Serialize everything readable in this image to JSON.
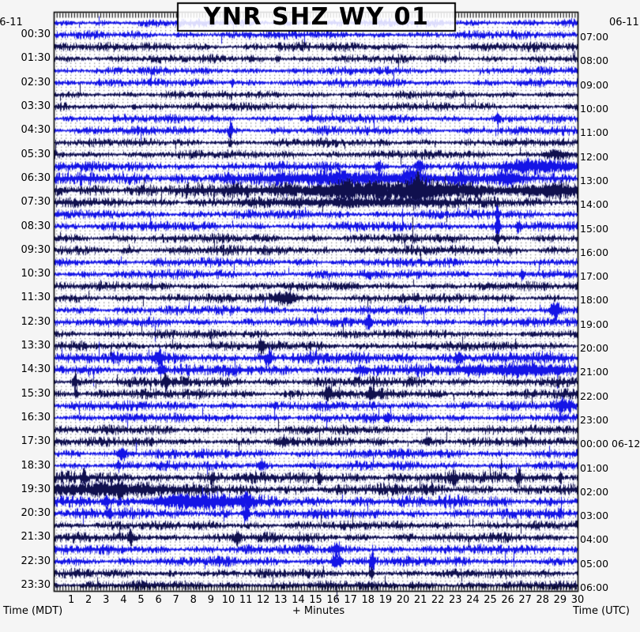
{
  "station": {
    "title": "YNR SHZ WY 01"
  },
  "dates": {
    "top_left": "06-11",
    "top_right": "06-11"
  },
  "axes": {
    "left_title": "Time (MDT)",
    "bottom_title": "+ Minutes",
    "right_title": "Time (UTC)"
  },
  "colors": {
    "background": "#f5f5f5",
    "plot_background": "#ffffff",
    "border": "#000000",
    "grid_dot": "#8f8f8f",
    "trace_blue": "#1414e6",
    "trace_dark": "#10104e",
    "trace_halo": "rgba(110,110,230,0.28)",
    "title_box_fill": "rgba(255,255,255,0.85)"
  },
  "chart_data": {
    "type": "line",
    "subtype": "helicorder-webicorder-seismogram",
    "title": "YNR SHZ WY 01",
    "start_date_label": "06-11",
    "rows": 48,
    "minutes_per_row": 30,
    "x_axis": {
      "label": "+ Minutes",
      "range": [
        0,
        30
      ],
      "tick_labels": [
        "1",
        "2",
        "3",
        "4",
        "5",
        "6",
        "7",
        "8",
        "9",
        "10",
        "11",
        "12",
        "13",
        "14",
        "15",
        "16",
        "17",
        "18",
        "19",
        "20",
        "21",
        "22",
        "23",
        "24",
        "25",
        "26",
        "27",
        "28",
        "29",
        "30"
      ]
    },
    "left_axis": {
      "label": "Time (MDT)",
      "tick_labels": [
        "00:30",
        "01:30",
        "02:30",
        "03:30",
        "04:30",
        "05:30",
        "06:30",
        "07:30",
        "08:30",
        "09:30",
        "10:30",
        "11:30",
        "12:30",
        "13:30",
        "14:30",
        "15:30",
        "16:30",
        "17:30",
        "18:30",
        "19:30",
        "20:30",
        "21:30",
        "22:30",
        "23:30"
      ]
    },
    "right_axis": {
      "label": "Time (UTC)",
      "tick_labels": [
        "07:00",
        "08:00",
        "09:00",
        "10:00",
        "11:00",
        "12:00",
        "13:00",
        "14:00",
        "15:00",
        "16:00",
        "17:00",
        "18:00",
        "19:00",
        "20:00",
        "21:00",
        "22:00",
        "23:00",
        "00:00 06-12",
        "01:00",
        "02:00",
        "03:00",
        "04:00",
        "05:00",
        "06:00"
      ]
    },
    "row_colors": [
      "b",
      "b",
      "d",
      "d",
      "b",
      "b",
      "d",
      "d",
      "b",
      "b",
      "d",
      "d",
      "b",
      "b",
      "d",
      "d",
      "b",
      "b",
      "d",
      "d",
      "b",
      "b",
      "d",
      "d",
      "b",
      "b",
      "d",
      "d",
      "b",
      "b",
      "d",
      "d",
      "b",
      "b",
      "d",
      "d",
      "b",
      "b",
      "d",
      "d",
      "b",
      "b",
      "d",
      "d",
      "b",
      "b",
      "d",
      "d"
    ],
    "row_activity": [
      0.9,
      0.9,
      0.95,
      0.9,
      0.85,
      0.9,
      0.85,
      0.9,
      0.9,
      0.95,
      0.9,
      0.95,
      1.05,
      1.5,
      1.6,
      1.15,
      1.0,
      1.05,
      1.0,
      1.1,
      1.0,
      1.0,
      0.95,
      1.0,
      1.0,
      1.0,
      0.95,
      1.05,
      1.35,
      1.3,
      1.15,
      1.1,
      1.05,
      1.0,
      1.0,
      1.0,
      1.05,
      1.0,
      1.25,
      1.3,
      1.3,
      1.15,
      1.0,
      1.05,
      1.05,
      1.05,
      1.0,
      1.0
    ],
    "events": [
      {
        "row": 2,
        "min": 12.9,
        "amp": 5,
        "sigma": 2.2
      },
      {
        "row": 3,
        "min": 12.8,
        "amp": 6,
        "sigma": 2.2
      },
      {
        "row": 5,
        "min": 10.2,
        "amp": 5,
        "sigma": 2.2
      },
      {
        "row": 7,
        "min": 4.6,
        "amp": 5,
        "sigma": 2.2
      },
      {
        "row": 8,
        "min": 25.4,
        "amp": 6,
        "sigma": 3
      },
      {
        "row": 9,
        "min": 10.1,
        "amp": 11,
        "sigma": 2.2
      },
      {
        "row": 10,
        "min": 10.1,
        "amp": 5,
        "sigma": 2.2
      },
      {
        "row": 11,
        "min": 28.6,
        "amp": 5,
        "sigma": 14
      },
      {
        "row": 12,
        "min": 18.6,
        "amp": 5,
        "sigma": 4
      },
      {
        "row": 12,
        "min": 20.9,
        "amp": 9,
        "sigma": 4
      },
      {
        "row": 12,
        "min": 28,
        "amp": 7,
        "sigma": 40
      },
      {
        "row": 13,
        "min": 16.5,
        "amp": 8,
        "sigma": 6
      },
      {
        "row": 13,
        "min": 17.5,
        "amp": 6,
        "sigma": 100
      },
      {
        "row": 13,
        "min": 20.5,
        "amp": 12,
        "sigma": 8
      },
      {
        "row": 13,
        "min": 26,
        "amp": 5,
        "sigma": 16
      },
      {
        "row": 14,
        "min": 16.8,
        "amp": 8,
        "sigma": 8
      },
      {
        "row": 14,
        "min": 19,
        "amp": 8,
        "sigma": 130
      },
      {
        "row": 14,
        "min": 20.8,
        "amp": 13,
        "sigma": 8
      },
      {
        "row": 14,
        "min": 28.5,
        "amp": 6,
        "sigma": 30
      },
      {
        "row": 15,
        "min": 18,
        "amp": 4,
        "sigma": 90
      },
      {
        "row": 16,
        "min": 25.4,
        "amp": 13,
        "sigma": 2.2
      },
      {
        "row": 17,
        "min": 25.4,
        "amp": 20,
        "sigma": 2.6
      },
      {
        "row": 17,
        "min": 26.6,
        "amp": 10,
        "sigma": 2.2
      },
      {
        "row": 18,
        "min": 25.4,
        "amp": 8,
        "sigma": 2.2
      },
      {
        "row": 21,
        "min": 26.8,
        "amp": 6,
        "sigma": 2.2
      },
      {
        "row": 23,
        "min": 13.3,
        "amp": 8,
        "sigma": 14
      },
      {
        "row": 24,
        "min": 28.7,
        "amp": 13,
        "sigma": 5
      },
      {
        "row": 25,
        "min": 18,
        "amp": 9,
        "sigma": 4
      },
      {
        "row": 27,
        "min": 11.9,
        "amp": 6,
        "sigma": 4
      },
      {
        "row": 28,
        "min": 6,
        "amp": 7,
        "sigma": 6
      },
      {
        "row": 28,
        "min": 12.3,
        "amp": 8,
        "sigma": 4
      },
      {
        "row": 28,
        "min": 23.2,
        "amp": 7,
        "sigma": 4
      },
      {
        "row": 29,
        "min": 6.2,
        "amp": 9,
        "sigma": 4
      },
      {
        "row": 29,
        "min": 17.6,
        "amp": 6,
        "sigma": 6
      },
      {
        "row": 29,
        "min": 26.9,
        "amp": 7,
        "sigma": 60
      },
      {
        "row": 30,
        "min": 1.2,
        "amp": 14,
        "sigma": 2.6
      },
      {
        "row": 30,
        "min": 6.4,
        "amp": 8,
        "sigma": 4
      },
      {
        "row": 31,
        "min": 1.3,
        "amp": 8,
        "sigma": 2.2
      },
      {
        "row": 31,
        "min": 15.7,
        "amp": 11,
        "sigma": 4
      },
      {
        "row": 31,
        "min": 18.2,
        "amp": 8,
        "sigma": 4
      },
      {
        "row": 32,
        "min": 29.3,
        "amp": 7,
        "sigma": 10
      },
      {
        "row": 33,
        "min": 19.1,
        "amp": 6,
        "sigma": 4
      },
      {
        "row": 35,
        "min": 13.2,
        "amp": 5,
        "sigma": 4
      },
      {
        "row": 35,
        "min": 21.4,
        "amp": 5,
        "sigma": 4
      },
      {
        "row": 36,
        "min": 3.9,
        "amp": 8,
        "sigma": 4
      },
      {
        "row": 37,
        "min": 3.7,
        "amp": 6,
        "sigma": 2.2
      },
      {
        "row": 37,
        "min": 11.9,
        "amp": 7,
        "sigma": 4
      },
      {
        "row": 38,
        "min": 1.7,
        "amp": 13,
        "sigma": 2.2
      },
      {
        "row": 38,
        "min": 9.1,
        "amp": 9,
        "sigma": 2.6
      },
      {
        "row": 38,
        "min": 15.2,
        "amp": 8,
        "sigma": 2.6
      },
      {
        "row": 38,
        "min": 22.9,
        "amp": 6,
        "sigma": 4
      },
      {
        "row": 38,
        "min": 26.6,
        "amp": 14,
        "sigma": 2.6
      },
      {
        "row": 38,
        "min": 29,
        "amp": 8,
        "sigma": 2.2
      },
      {
        "row": 39,
        "min": 2.5,
        "amp": 7,
        "sigma": 70
      },
      {
        "row": 39,
        "min": 3.8,
        "amp": 9,
        "sigma": 4
      },
      {
        "row": 40,
        "min": 3,
        "amp": 7,
        "sigma": 4
      },
      {
        "row": 40,
        "min": 8,
        "amp": 8,
        "sigma": 50
      },
      {
        "row": 40,
        "min": 11,
        "amp": 10,
        "sigma": 6
      },
      {
        "row": 41,
        "min": 3.1,
        "amp": 6,
        "sigma": 4
      },
      {
        "row": 41,
        "min": 11,
        "amp": 11,
        "sigma": 4
      },
      {
        "row": 43,
        "min": 4.4,
        "amp": 10,
        "sigma": 2.6
      },
      {
        "row": 43,
        "min": 10.5,
        "amp": 8,
        "sigma": 4
      },
      {
        "row": 44,
        "min": 16.2,
        "amp": 8,
        "sigma": 4
      },
      {
        "row": 45,
        "min": 16.2,
        "amp": 11,
        "sigma": 6
      },
      {
        "row": 45,
        "min": 18.2,
        "amp": 22,
        "sigma": 2.6
      },
      {
        "row": 46,
        "min": 18.2,
        "amp": 8,
        "sigma": 2.2
      }
    ]
  }
}
